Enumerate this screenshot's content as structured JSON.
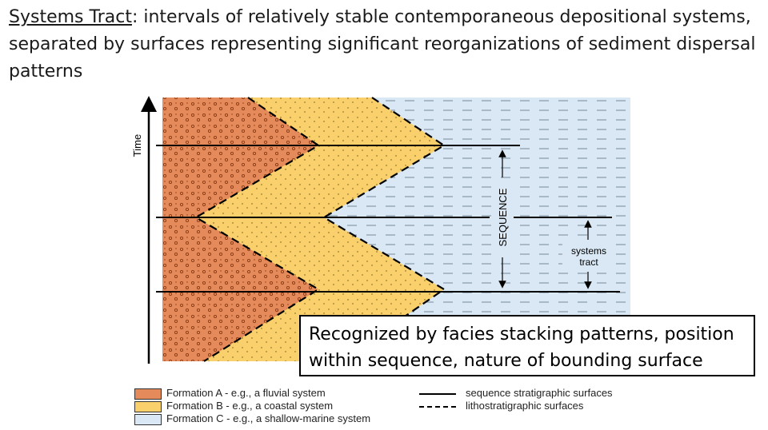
{
  "title": {
    "term": "Systems Tract",
    "definition": ": intervals of relatively stable contemporaneous depositional systems, separated by surfaces representing significant reorganizations of sediment dispersal patterns"
  },
  "diagram": {
    "y_axis_label": "Time",
    "sequence_label": "SEQUENCE",
    "systems_tract_label_line1": "systems",
    "systems_tract_label_line2": "tract"
  },
  "callout": {
    "text": "Recognized by facies stacking patterns, position within sequence, nature of bounding surface"
  },
  "legend": {
    "formation_a": "Formation A - e.g., a fluvial system",
    "formation_b": "Formation B - e.g., a coastal system",
    "formation_c": "Formation C - e.g., a shallow-marine system",
    "solid_line": "sequence stratigraphic surfaces",
    "dashed_line": "lithostratigraphic surfaces"
  },
  "colors": {
    "formation_a": "#e58a5a",
    "formation_b": "#f9d06c",
    "formation_c": "#d9e8f4"
  }
}
